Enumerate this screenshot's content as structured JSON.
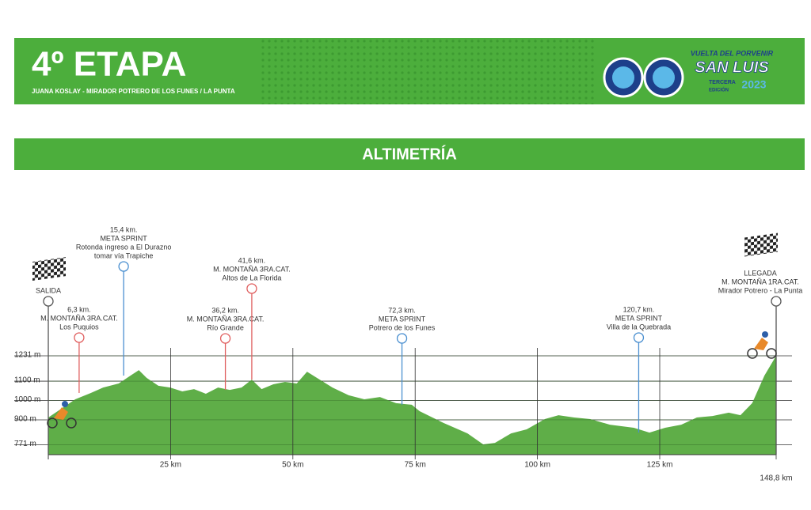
{
  "header": {
    "title": "4º ETAPA",
    "subtitle": "JUANA KOSLAY - MIRADOR POTRERO DE LOS FUNES / LA PUNTA",
    "logo": {
      "line1": "VUELTA DEL PORVENIR",
      "line2": "SAN LUIS",
      "line3": "TERCERA",
      "line4": "EDICIÓN",
      "year": "2023"
    }
  },
  "section_title": "ALTIMETRÍA",
  "chart_data": {
    "type": "area",
    "color": "#5fae48",
    "x": [
      0,
      3.1,
      5.5,
      8.7,
      11.2,
      14.4,
      16.8,
      18.5,
      20.1,
      22.5,
      24.9,
      27.4,
      29.8,
      32.2,
      34.7,
      37.1,
      39.5,
      41.6,
      43.6,
      46.0,
      48.4,
      50.8,
      52.9,
      54.9,
      58.1,
      61.4,
      64.6,
      67.8,
      71.1,
      74.3,
      75.9,
      80.8,
      85.7,
      88.9,
      91.3,
      94.6,
      97.8,
      101.5,
      104.3,
      107.5,
      110.8,
      114.8,
      119.7,
      122.9,
      126.1,
      129.4,
      132.6,
      135.8,
      139.1,
      141.5,
      143.9,
      146.4,
      148.8
    ],
    "values": [
      912,
      965,
      1006,
      1039,
      1067,
      1088,
      1129,
      1157,
      1117,
      1076,
      1067,
      1047,
      1059,
      1035,
      1067,
      1055,
      1067,
      1108,
      1059,
      1084,
      1096,
      1088,
      1149,
      1117,
      1067,
      1027,
      1006,
      1018,
      986,
      978,
      945,
      884,
      830,
      773,
      781,
      830,
      851,
      904,
      924,
      912,
      904,
      875,
      859,
      834,
      859,
      875,
      912,
      920,
      937,
      924,
      986,
      1129,
      1231
    ],
    "xlim": [
      0,
      148.8
    ],
    "ylim": [
      720,
      1250
    ],
    "xticks": [
      {
        "value": 25,
        "label": "25 km"
      },
      {
        "value": 50,
        "label": "50 km"
      },
      {
        "value": 75,
        "label": "75 km"
      },
      {
        "value": 100,
        "label": "100 km"
      },
      {
        "value": 125,
        "label": "125 km"
      },
      {
        "value": 148.8,
        "label": "148,8 km"
      }
    ],
    "yticks": [
      {
        "value": 771,
        "label": "771 m"
      },
      {
        "value": 900,
        "label": "900 m"
      },
      {
        "value": 1000,
        "label": "1000 m"
      },
      {
        "value": 1100,
        "label": "1100 m"
      },
      {
        "value": 1231,
        "label": "1231 m"
      }
    ],
    "markers": [
      {
        "x": 0,
        "color": "#555555",
        "lines": [
          "SALIDA"
        ]
      },
      {
        "x": 6.3,
        "color": "#e06060",
        "lines": [
          "6,3 km.",
          "M. MONTAÑA 3RA.CAT.",
          "Los Puquios"
        ]
      },
      {
        "x": 15.4,
        "color": "#4a8fd0",
        "lines": [
          "15,4 km.",
          "META SPRINT",
          "Rotonda ingreso a El Durazno",
          "tomar vía Trapiche"
        ]
      },
      {
        "x": 36.2,
        "color": "#e06060",
        "lines": [
          "36,2 km.",
          "M. MONTAÑA 3RA.CAT.",
          "Río Grande"
        ]
      },
      {
        "x": 41.6,
        "color": "#e06060",
        "lines": [
          "41,6 km.",
          "M. MONTAÑA 3RA.CAT.",
          "Altos de La Florida"
        ]
      },
      {
        "x": 72.3,
        "color": "#4a8fd0",
        "lines": [
          "72,3 km.",
          "META SPRINT",
          "Potrero de los Funes"
        ]
      },
      {
        "x": 120.7,
        "color": "#4a8fd0",
        "lines": [
          "120,7 km.",
          "META SPRINT",
          "Villa de la Quebrada"
        ]
      },
      {
        "x": 148.8,
        "color": "#555555",
        "lines": [
          "LLEGADA",
          "M. MONTAÑA 1RA.CAT.",
          "Mirador Potrero - La Punta"
        ]
      }
    ]
  }
}
